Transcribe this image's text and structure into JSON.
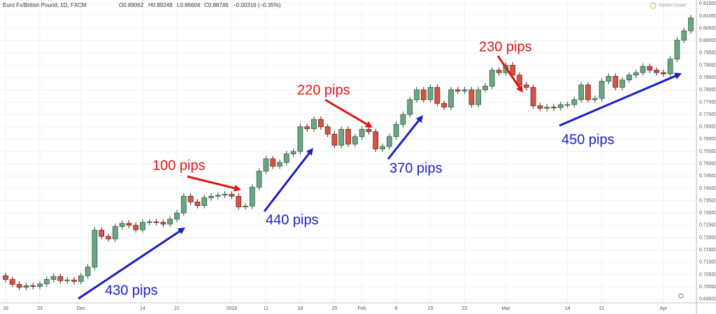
{
  "header": {
    "symbol": "Euro Fx/British Pound, 1D, FXCM",
    "open": "O0.89062",
    "high": "H0.89248",
    "low": "L0.86604",
    "close": "C0.88746",
    "change": "−0.00316 (−0.35%)",
    "status": "Market Closed"
  },
  "chart_data": {
    "type": "candlestick",
    "up_color": "#6ba583",
    "up_border": "#225437",
    "down_color": "#d75442",
    "down_border": "#5b1a13",
    "grid": true,
    "categories": [
      "16",
      null,
      null,
      null,
      null,
      "23",
      null,
      null,
      null,
      null,
      null,
      "Dec",
      null,
      null,
      null,
      null,
      null,
      null,
      null,
      null,
      "14",
      null,
      null,
      null,
      null,
      "21",
      null,
      null,
      null,
      null,
      null,
      null,
      null,
      "2018",
      null,
      null,
      null,
      null,
      "11",
      null,
      null,
      null,
      null,
      "18",
      null,
      null,
      null,
      null,
      "25",
      null,
      null,
      null,
      "Feb",
      null,
      null,
      null,
      null,
      "8",
      null,
      null,
      null,
      null,
      "15",
      null,
      null,
      null,
      null,
      "22",
      null,
      null,
      null,
      null,
      null,
      "Mar",
      null,
      null,
      null,
      null,
      null,
      null,
      null,
      null,
      "14",
      null,
      null,
      null,
      null,
      "21",
      null,
      null,
      null,
      null,
      null,
      null,
      null,
      null,
      "Apr",
      null,
      null,
      null,
      null
    ],
    "open": [
      0.7045,
      0.703,
      0.701,
      0.6998,
      0.7005,
      0.7002,
      0.7012,
      0.703,
      0.7042,
      0.7025,
      0.7028,
      0.7022,
      0.7045,
      0.708,
      0.723,
      0.7205,
      0.7195,
      0.7245,
      0.7258,
      0.725,
      0.7232,
      0.7262,
      0.7264,
      0.7262,
      0.7255,
      0.7275,
      0.73,
      0.7368,
      0.7345,
      0.733,
      0.7362,
      0.7368,
      0.7372,
      0.7376,
      0.7368,
      0.7325,
      0.7328,
      0.7405,
      0.747,
      0.752,
      0.749,
      0.7505,
      0.754,
      0.755,
      0.765,
      0.7642,
      0.768,
      0.765,
      0.762,
      0.7575,
      0.764,
      0.758,
      0.761,
      0.764,
      0.763,
      0.756,
      0.757,
      0.761,
      0.766,
      0.77,
      0.776,
      0.78,
      0.776,
      0.781,
      0.7745,
      0.773,
      0.78,
      0.7795,
      0.78,
      0.774,
      0.78,
      0.7815,
      0.788,
      0.787,
      0.79,
      0.786,
      0.782,
      0.781,
      0.7735,
      0.7725,
      0.773,
      0.7728,
      0.774,
      0.774,
      0.776,
      0.782,
      0.776,
      0.7765,
      0.7835,
      0.7855,
      0.781,
      0.784,
      0.786,
      0.787,
      0.7895,
      0.788,
      0.787,
      0.7865,
      0.7925,
      0.8002,
      0.804
    ],
    "high": [
      0.7057,
      0.7042,
      0.7022,
      0.7017,
      0.7017,
      0.7024,
      0.7042,
      0.7054,
      0.7054,
      0.704,
      0.704,
      0.7057,
      0.7092,
      0.7242,
      0.7242,
      0.7217,
      0.7257,
      0.727,
      0.727,
      0.7262,
      0.7274,
      0.7276,
      0.7276,
      0.7274,
      0.7287,
      0.7312,
      0.738,
      0.738,
      0.7357,
      0.7374,
      0.738,
      0.7384,
      0.7388,
      0.7388,
      0.738,
      0.734,
      0.7417,
      0.7482,
      0.7532,
      0.7532,
      0.7517,
      0.7552,
      0.7562,
      0.7662,
      0.7662,
      0.7692,
      0.7692,
      0.7662,
      0.7632,
      0.7652,
      0.7652,
      0.7622,
      0.7652,
      0.7652,
      0.7642,
      0.7582,
      0.7622,
      0.7672,
      0.7712,
      0.7772,
      0.7812,
      0.7812,
      0.7822,
      0.7822,
      0.7757,
      0.7812,
      0.7812,
      0.7812,
      0.7812,
      0.7812,
      0.7827,
      0.7892,
      0.7892,
      0.7912,
      0.7912,
      0.7872,
      0.7832,
      0.7822,
      0.7747,
      0.7742,
      0.7742,
      0.7752,
      0.7752,
      0.7772,
      0.7832,
      0.7832,
      0.7777,
      0.7847,
      0.7867,
      0.7867,
      0.7852,
      0.7872,
      0.7882,
      0.7907,
      0.7907,
      0.7892,
      0.7882,
      0.7937,
      0.8014,
      0.8052,
      0.8104
    ],
    "low": [
      0.7018,
      0.6998,
      0.6986,
      0.6986,
      0.699,
      0.699,
      0.7,
      0.7018,
      0.7013,
      0.7013,
      0.701,
      0.701,
      0.7033,
      0.7068,
      0.7193,
      0.7183,
      0.7183,
      0.7233,
      0.7238,
      0.722,
      0.722,
      0.725,
      0.725,
      0.7243,
      0.7243,
      0.7263,
      0.7288,
      0.7333,
      0.7318,
      0.7318,
      0.735,
      0.7356,
      0.736,
      0.7356,
      0.7313,
      0.7313,
      0.7316,
      0.7393,
      0.7458,
      0.7478,
      0.7478,
      0.7493,
      0.7528,
      0.7538,
      0.763,
      0.763,
      0.7638,
      0.7608,
      0.7563,
      0.7563,
      0.7568,
      0.7568,
      0.7598,
      0.7618,
      0.7548,
      0.7548,
      0.7558,
      0.7598,
      0.7648,
      0.7688,
      0.7748,
      0.7748,
      0.7748,
      0.7733,
      0.7718,
      0.7718,
      0.7783,
      0.7783,
      0.7728,
      0.7728,
      0.7788,
      0.7803,
      0.7858,
      0.7858,
      0.7848,
      0.7808,
      0.7798,
      0.7723,
      0.7713,
      0.7713,
      0.7716,
      0.7716,
      0.7728,
      0.7728,
      0.7748,
      0.7748,
      0.7748,
      0.7753,
      0.7823,
      0.7798,
      0.7798,
      0.7828,
      0.7848,
      0.7858,
      0.7868,
      0.7858,
      0.7853,
      0.7853,
      0.7913,
      0.799,
      0.8028
    ],
    "close": [
      0.703,
      0.701,
      0.6998,
      0.7005,
      0.7002,
      0.7012,
      0.703,
      0.7042,
      0.7025,
      0.7028,
      0.7022,
      0.7045,
      0.708,
      0.723,
      0.7205,
      0.7195,
      0.7245,
      0.7258,
      0.725,
      0.7232,
      0.7262,
      0.7264,
      0.7262,
      0.7255,
      0.7275,
      0.73,
      0.7368,
      0.7345,
      0.733,
      0.7362,
      0.7368,
      0.7372,
      0.7376,
      0.7368,
      0.7325,
      0.7328,
      0.7405,
      0.747,
      0.752,
      0.749,
      0.7505,
      0.754,
      0.755,
      0.765,
      0.7642,
      0.768,
      0.765,
      0.762,
      0.7575,
      0.764,
      0.758,
      0.761,
      0.764,
      0.763,
      0.756,
      0.757,
      0.761,
      0.766,
      0.77,
      0.776,
      0.78,
      0.776,
      0.781,
      0.7745,
      0.773,
      0.78,
      0.7795,
      0.78,
      0.774,
      0.78,
      0.7815,
      0.788,
      0.787,
      0.79,
      0.786,
      0.782,
      0.781,
      0.7735,
      0.7725,
      0.773,
      0.7728,
      0.774,
      0.774,
      0.776,
      0.782,
      0.776,
      0.7765,
      0.7835,
      0.7855,
      0.781,
      0.784,
      0.786,
      0.787,
      0.7895,
      0.788,
      0.787,
      0.7865,
      0.7925,
      0.8002,
      0.804,
      0.8092
    ],
    "ylim": [
      0.6935,
      0.8165
    ],
    "yticks": [
      {
        "value": 0.695,
        "label": "0.69500"
      },
      {
        "value": 0.7,
        "label": "0.70000"
      },
      {
        "value": 0.705,
        "label": "0.70500"
      },
      {
        "value": 0.71,
        "label": "0.71000"
      },
      {
        "value": 0.715,
        "label": "0.71500"
      },
      {
        "value": 0.72,
        "label": "0.72000"
      },
      {
        "value": 0.725,
        "label": "0.72500"
      },
      {
        "value": 0.73,
        "label": "0.73000"
      },
      {
        "value": 0.735,
        "label": "0.73500"
      },
      {
        "value": 0.74,
        "label": "0.74000"
      },
      {
        "value": 0.745,
        "label": "0.74500"
      },
      {
        "value": 0.75,
        "label": "0.75000"
      },
      {
        "value": 0.755,
        "label": "0.75500"
      },
      {
        "value": 0.76,
        "label": "0.76000"
      },
      {
        "value": 0.765,
        "label": "0.76500"
      },
      {
        "value": 0.77,
        "label": "0.77000"
      },
      {
        "value": 0.775,
        "label": "0.77500"
      },
      {
        "value": 0.78,
        "label": "0.78000"
      },
      {
        "value": 0.785,
        "label": "0.78500"
      },
      {
        "value": 0.79,
        "label": "0.79000"
      },
      {
        "value": 0.795,
        "label": "0.79500"
      },
      {
        "value": 0.8,
        "label": "0.80000"
      },
      {
        "value": 0.805,
        "label": "0.80500"
      },
      {
        "value": 0.81,
        "label": "0.81000"
      },
      {
        "value": 0.815,
        "label": "0.81500"
      }
    ],
    "annotations": [
      {
        "text": "430 pips",
        "color": "#1c1cc8"
      },
      {
        "text": "100 pips",
        "color": "#e31414"
      },
      {
        "text": "440 pips",
        "color": "#1c1cc8"
      },
      {
        "text": "220 pips",
        "color": "#e31414"
      },
      {
        "text": "370 pips",
        "color": "#1c1cc8"
      },
      {
        "text": "230 pips",
        "color": "#e31414"
      },
      {
        "text": "450 pips",
        "color": "#1c1cc8"
      }
    ]
  }
}
